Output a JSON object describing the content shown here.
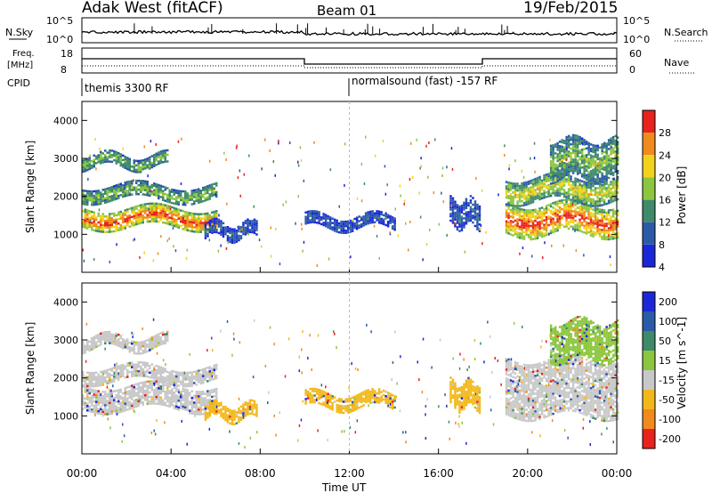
{
  "header": {
    "title": "Adak West (fitACF)",
    "beam": "Beam 01",
    "date": "19/Feb/2015"
  },
  "panels": {
    "nsky_label": "N.Sky",
    "nsky_ticks": [
      "10^5",
      "10^0"
    ],
    "nsearch_label": "N.Search",
    "freq_label": "Freq.",
    "freq_unit": "[MHz]",
    "freq_ticks": [
      "18",
      "8"
    ],
    "nave_label": "Nave",
    "nave_ticks": [
      "60",
      "0"
    ],
    "cpid_label": "CPID",
    "cpid_segments": [
      "themis 3300 RF",
      "normalsound (fast) -157 RF"
    ]
  },
  "chart_data": [
    {
      "type": "heatmap",
      "name": "power",
      "ylabel": "Slant Range [km]",
      "xlabel": "Time UT",
      "xlim": [
        0,
        24
      ],
      "ylim": [
        0,
        4500
      ],
      "x_ticks": [
        "00:00",
        "04:00",
        "08:00",
        "12:00",
        "16:00",
        "20:00",
        "00:00"
      ],
      "y_ticks": [
        "1000",
        "2000",
        "3000",
        "4000"
      ],
      "colorbar": {
        "label": "Power [dB]",
        "ticks": [
          "4",
          "8",
          "12",
          "16",
          "20",
          "24",
          "28"
        ],
        "colors": [
          "#1b28d8",
          "#2c5aa8",
          "#3f8a6a",
          "#8cc63f",
          "#f2d21b",
          "#f08a1c",
          "#e8221c"
        ]
      },
      "echo_regions": [
        {
          "t0": 0.0,
          "t1": 6.0,
          "r0": 1200,
          "r1": 1700,
          "level": 6
        },
        {
          "t0": 0.0,
          "t1": 6.0,
          "r0": 1900,
          "r1": 2300,
          "level": 3
        },
        {
          "t0": 0.0,
          "t1": 3.8,
          "r0": 2800,
          "r1": 3100,
          "level": 3
        },
        {
          "t0": 5.5,
          "t1": 7.8,
          "r0": 900,
          "r1": 1300,
          "level": 1
        },
        {
          "t0": 10.0,
          "t1": 14.0,
          "r0": 1200,
          "r1": 1500,
          "level": 1
        },
        {
          "t0": 16.5,
          "t1": 17.8,
          "r0": 1250,
          "r1": 1900,
          "level": 1
        },
        {
          "t0": 19.0,
          "t1": 24.0,
          "r0": 1000,
          "r1": 1800,
          "level": 6
        },
        {
          "t0": 19.0,
          "t1": 24.0,
          "r0": 1900,
          "r1": 2500,
          "level": 4
        },
        {
          "t0": 21.0,
          "t1": 24.0,
          "r0": 2500,
          "r1": 3500,
          "level": 3
        }
      ]
    },
    {
      "type": "heatmap",
      "name": "velocity",
      "ylabel": "Slant Range [km]",
      "xlabel": "Time UT",
      "xlim": [
        0,
        24
      ],
      "ylim": [
        0,
        4500
      ],
      "x_ticks": [
        "00:00",
        "04:00",
        "08:00",
        "12:00",
        "16:00",
        "20:00",
        "00:00"
      ],
      "y_ticks": [
        "1000",
        "2000",
        "3000",
        "4000"
      ],
      "colorbar": {
        "label": "Velocity [m s^-1]",
        "ticks": [
          "200",
          "100",
          "50",
          "15",
          "-15",
          "-50",
          "-100",
          "-200"
        ],
        "colors": [
          "#1b28d8",
          "#2c5aa8",
          "#3f8a6a",
          "#8cc63f",
          "#c8c8c8",
          "#f2b81b",
          "#f08a1c",
          "#e8221c"
        ]
      },
      "echo_regions": [
        {
          "t0": 0.0,
          "t1": 6.0,
          "r0": 1200,
          "r1": 1800,
          "level": 4
        },
        {
          "t0": 0.0,
          "t1": 6.0,
          "r0": 1900,
          "r1": 2300,
          "level": 4
        },
        {
          "t0": 0.0,
          "t1": 3.8,
          "r0": 2800,
          "r1": 3100,
          "level": 4
        },
        {
          "t0": 5.5,
          "t1": 7.8,
          "r0": 900,
          "r1": 1300,
          "level": 5
        },
        {
          "t0": 10.0,
          "t1": 14.0,
          "r0": 1200,
          "r1": 1600,
          "level": 5
        },
        {
          "t0": 16.5,
          "t1": 17.8,
          "r0": 1250,
          "r1": 1900,
          "level": 5
        },
        {
          "t0": 19.0,
          "t1": 24.0,
          "r0": 1000,
          "r1": 2500,
          "level": 4
        },
        {
          "t0": 21.0,
          "t1": 24.0,
          "r0": 2500,
          "r1": 3500,
          "level": 3
        }
      ]
    }
  ]
}
